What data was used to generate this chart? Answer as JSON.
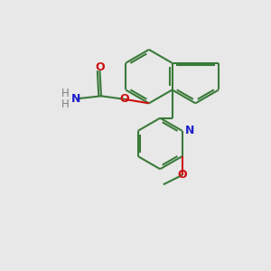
{
  "background_color": "#e8e8e8",
  "bond_color": "#3a7a3a",
  "N_color": "#2020cc",
  "O_color": "#cc1010",
  "line_width": 1.5,
  "fig_size": [
    3.0,
    3.0
  ],
  "dpi": 100,
  "xlim": [
    0,
    10
  ],
  "ylim": [
    0,
    10
  ]
}
